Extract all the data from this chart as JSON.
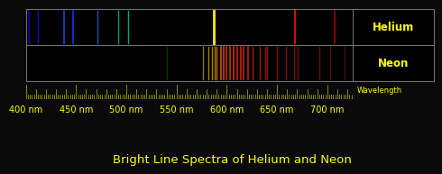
{
  "title": "Bright Line Spectra of Helium and Neon",
  "title_color": "#ffff00",
  "background_color": "#0a0a0a",
  "spectrum_bg": "#000000",
  "border_color": "#777777",
  "wavelength_min": 400,
  "wavelength_max": 725,
  "label_color": "#ffff00",
  "tick_color": "#bbbb00",
  "wavelength_label": "Wavelength",
  "helium_label": "Helium",
  "neon_label": "Neon",
  "helium_lines": [
    {
      "wl": 403,
      "color": "#2200aa",
      "lw": 1.2
    },
    {
      "wl": 412,
      "color": "#1100cc",
      "lw": 1.0
    },
    {
      "wl": 438,
      "color": "#2244cc",
      "lw": 1.2
    },
    {
      "wl": 447,
      "color": "#1133ee",
      "lw": 1.2
    },
    {
      "wl": 471,
      "color": "#1155bb",
      "lw": 1.0
    },
    {
      "wl": 492,
      "color": "#009977",
      "lw": 1.0
    },
    {
      "wl": 502,
      "color": "#00aa66",
      "lw": 1.0
    },
    {
      "wl": 587,
      "color": "#ffee00",
      "lw": 2.0
    },
    {
      "wl": 668,
      "color": "#cc1100",
      "lw": 1.5
    },
    {
      "wl": 707,
      "color": "#990000",
      "lw": 1.2
    }
  ],
  "neon_lines": [
    {
      "wl": 540,
      "color": "#003300",
      "lw": 1.0
    },
    {
      "wl": 576,
      "color": "#887700",
      "lw": 1.0
    },
    {
      "wl": 582,
      "color": "#998800",
      "lw": 1.0
    },
    {
      "wl": 585,
      "color": "#aa8800",
      "lw": 1.0
    },
    {
      "wl": 588,
      "color": "#bb7700",
      "lw": 1.0
    },
    {
      "wl": 590,
      "color": "#cc6600",
      "lw": 1.0
    },
    {
      "wl": 594,
      "color": "#cc5500",
      "lw": 1.2
    },
    {
      "wl": 597,
      "color": "#cc4400",
      "lw": 1.2
    },
    {
      "wl": 600,
      "color": "#cc3300",
      "lw": 1.2
    },
    {
      "wl": 603,
      "color": "#bb3300",
      "lw": 1.2
    },
    {
      "wl": 607,
      "color": "#cc3300",
      "lw": 1.2
    },
    {
      "wl": 610,
      "color": "#cc2200",
      "lw": 1.2
    },
    {
      "wl": 614,
      "color": "#cc2200",
      "lw": 1.2
    },
    {
      "wl": 617,
      "color": "#bb2200",
      "lw": 1.2
    },
    {
      "wl": 621,
      "color": "#bb2200",
      "lw": 1.2
    },
    {
      "wl": 626,
      "color": "#aa2200",
      "lw": 1.0
    },
    {
      "wl": 633,
      "color": "#aa1100",
      "lw": 1.0
    },
    {
      "wl": 638,
      "color": "#991100",
      "lw": 1.0
    },
    {
      "wl": 640,
      "color": "#991100",
      "lw": 1.0
    },
    {
      "wl": 650,
      "color": "#881100",
      "lw": 1.0
    },
    {
      "wl": 659,
      "color": "#881100",
      "lw": 1.0
    },
    {
      "wl": 667,
      "color": "#771100",
      "lw": 1.0
    },
    {
      "wl": 671,
      "color": "#771100",
      "lw": 1.0
    },
    {
      "wl": 692,
      "color": "#661100",
      "lw": 1.0
    },
    {
      "wl": 703,
      "color": "#551100",
      "lw": 1.0
    },
    {
      "wl": 717,
      "color": "#441100",
      "lw": 1.0
    }
  ],
  "tick_labels": [
    400,
    450,
    500,
    550,
    600,
    650,
    700
  ],
  "label_fontsize": 7.0,
  "title_fontsize": 9.5
}
